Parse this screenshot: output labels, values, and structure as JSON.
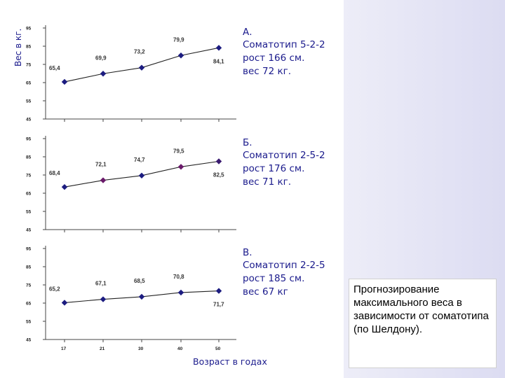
{
  "chart_data": {
    "type": "line",
    "y_axis_label": "Вес в кг.",
    "x_axis_label": "Возраст в годах",
    "x": [
      "17",
      "21",
      "30",
      "40",
      "50"
    ],
    "y_ticks": [
      "95",
      "85",
      "75",
      "65",
      "55",
      "45"
    ],
    "ylim": [
      45,
      95
    ],
    "panels": [
      {
        "letter": "А.",
        "somatotype": "Соматотип 5-2-2",
        "height": "рост 166 см.",
        "weight": "вес 72 кг.",
        "values": [
          65.4,
          69.9,
          73.2,
          79.9,
          84.1
        ],
        "labels": [
          "65,4",
          "69,9",
          "73,2",
          "79,9",
          "84,1"
        ],
        "marker_colors": [
          "#1c1c80",
          "#1c1c80",
          "#1c1c80",
          "#1c1c80",
          "#1c1c80"
        ]
      },
      {
        "letter": "Б.",
        "somatotype": "Соматотип 2-5-2",
        "height": "рост 176 см.",
        "weight": "вес 71 кг.",
        "values": [
          68.4,
          72.1,
          74.7,
          79.5,
          82.5
        ],
        "labels": [
          "68,4",
          "72,1",
          "74,7",
          "79,5",
          "82,5"
        ],
        "marker_colors": [
          "#1c1c80",
          "#6a1a6a",
          "#1c1c80",
          "#6a1a6a",
          "#3a1a70"
        ]
      },
      {
        "letter": "В.",
        "somatotype": "Соматотип 2-2-5",
        "height": "рост 185 см.",
        "weight": "вес 67 кг",
        "values": [
          65.2,
          67.1,
          68.5,
          70.8,
          71.7
        ],
        "labels": [
          "65,2",
          "67,1",
          "68,5",
          "70,8",
          "71,7"
        ],
        "marker_colors": [
          "#1c1c80",
          "#1c1c80",
          "#1c1c80",
          "#1c1c80",
          "#1c1c80"
        ]
      }
    ]
  },
  "caption": "Прогнозирование максимального веса в зависимости от соматотипа (по Шелдону).",
  "colors": {
    "accent": "#1a1a8c",
    "line": "#222222",
    "background_right": "#dcdcf2"
  }
}
